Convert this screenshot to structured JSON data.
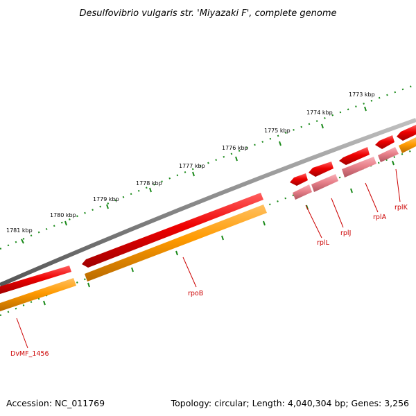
{
  "title": "Desulfovibrio vulgaris str. 'Miyazaki F', complete genome",
  "footer": {
    "accession": "Accession: NC_011769",
    "summary": "Topology: circular; Length: 4,040,304 bp; Genes: 3,256"
  },
  "ticks": [
    "1773 kbp",
    "1774 kbp",
    "1775 kbp",
    "1776 kbp",
    "1777 kbp",
    "1778 kbp",
    "1779 kbp",
    "1780 kbp",
    "1781 kbp"
  ],
  "genes": [
    {
      "label": "DvMF_1456",
      "strand": "reverse",
      "type": "protein"
    },
    {
      "label": "rpoB",
      "strand": "reverse",
      "type": "protein"
    },
    {
      "label": "rplL",
      "strand": "reverse",
      "type": "protein"
    },
    {
      "label": "rplJ",
      "strand": "reverse",
      "type": "protein"
    },
    {
      "label": "rplA",
      "strand": "reverse",
      "type": "protein"
    },
    {
      "label": "rplK",
      "strand": "reverse",
      "type": "protein"
    }
  ],
  "colors": {
    "backbone": "#8a8a8a",
    "cds_feature": "#ee0000",
    "protein_main": "#ff9a00",
    "protein_faded": "#e8808a",
    "tick": "#1a8a1a",
    "label": "#cc0000"
  }
}
